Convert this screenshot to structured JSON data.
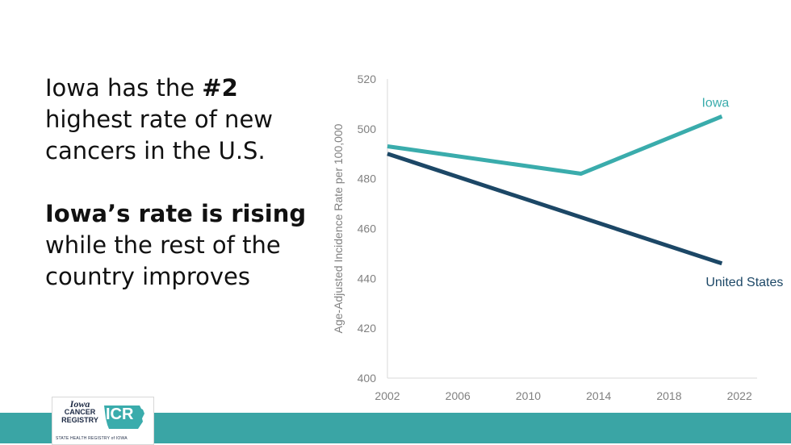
{
  "headline": {
    "p1_pre": "Iowa has the ",
    "p1_bold": "#2",
    "p1_post": " highest rate of new cancers in the U.S.",
    "p2_bold": "Iowa’s rate is rising",
    "p2_post": " while the rest of the country improves"
  },
  "colors": {
    "iowa": "#3aacac",
    "united_states": "#1c4766",
    "footer_band": "#3aa5a5"
  },
  "logo": {
    "iowa": "Iowa",
    "cancer": "CANCER",
    "registry": "REGISTRY",
    "icr": "ICR",
    "tagline": "STATE HEALTH REGISTRY of IOWA"
  },
  "chart_data": {
    "type": "line",
    "ylabel": "Age-Adjusted Incidence Rate per 100,000",
    "xlabel": "",
    "xlim": [
      2002,
      2023
    ],
    "ylim": [
      400,
      520
    ],
    "x_ticks": [
      2002,
      2006,
      2010,
      2014,
      2018,
      2022
    ],
    "y_ticks": [
      400,
      420,
      440,
      460,
      480,
      500,
      520
    ],
    "grid": false,
    "series": [
      {
        "name": "Iowa",
        "x": [
          2002,
          2013,
          2021
        ],
        "values": [
          493,
          482,
          505
        ],
        "color": "#3aacac"
      },
      {
        "name": "United States",
        "x": [
          2002,
          2021
        ],
        "values": [
          490,
          446
        ],
        "color": "#1c4766"
      }
    ]
  }
}
